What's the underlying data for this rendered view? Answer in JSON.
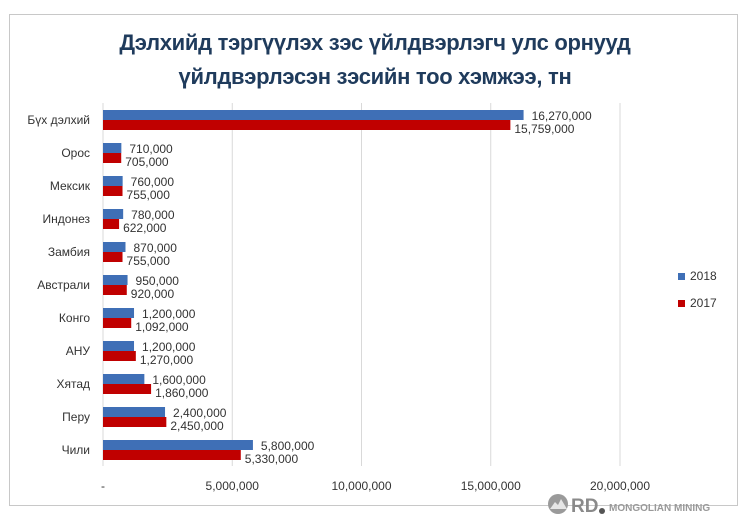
{
  "chart_data": {
    "type": "bar",
    "orientation": "horizontal",
    "title": "Дэлхийд тэргүүлэх зэс үйлдвэрлэгч улс орнууд үйлдвэрлэсэн зэсийн тоо хэмжээ, тн",
    "title_lines": [
      "Дэлхийд тэргүүлэх зэс үйлдвэрлэгч улс орнууд",
      "үйлдвэрлэсэн зэсийн тоо хэмжээ, тн"
    ],
    "categories": [
      "Бүх дэлхий",
      "Орос",
      "Мексик",
      "Индонез",
      "Замбия",
      "Австрали",
      "Конго",
      "АНУ",
      "Хятад",
      "Перу",
      "Чили"
    ],
    "series": [
      {
        "name": "2018",
        "color": "#3f6fb6",
        "values": [
          16270000,
          710000,
          760000,
          780000,
          870000,
          950000,
          1200000,
          1200000,
          1600000,
          2400000,
          5800000
        ],
        "labels": [
          "16,270,000",
          "710,000",
          "760,000",
          "780,000",
          "870,000",
          "950,000",
          "1,200,000",
          "1,200,000",
          "1,600,000",
          "2,400,000",
          "5,800,000"
        ]
      },
      {
        "name": "2017",
        "color": "#c00000",
        "values": [
          15759000,
          705000,
          755000,
          622000,
          755000,
          920000,
          1092000,
          1270000,
          1860000,
          2450000,
          5330000
        ],
        "labels": [
          "15,759,000",
          "705,000",
          "755,000",
          "622,000",
          "755,000",
          "920,000",
          "1,092,000",
          "1,270,000",
          "1,860,000",
          "2,450,000",
          "5,330,000"
        ]
      }
    ],
    "xlim": [
      0,
      20000000
    ],
    "xticks": [
      "-",
      "5,000,000",
      "10,000,000",
      "15,000,000",
      "20,000,000"
    ],
    "grid": true,
    "legend": "right"
  },
  "watermark": {
    "logo_text": "RD",
    "brand": "MONGOLIAN MINING"
  }
}
